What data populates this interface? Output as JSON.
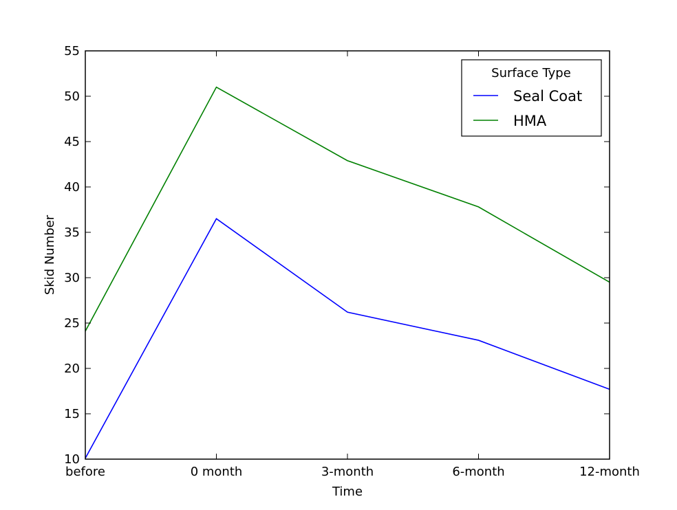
{
  "chart_data": {
    "type": "line",
    "categories": [
      "before",
      "0 month",
      "3-month",
      "6-month",
      "12-month"
    ],
    "series": [
      {
        "name": "Seal Coat",
        "color": "#0000ff",
        "values": [
          10.1,
          36.5,
          26.2,
          23.1,
          17.7
        ]
      },
      {
        "name": "HMA",
        "color": "#008000",
        "values": [
          24.1,
          51.0,
          42.9,
          37.8,
          29.5
        ]
      }
    ],
    "title": "",
    "xlabel": "Time",
    "ylabel": "Skid Number",
    "ylim": [
      10,
      55
    ],
    "yticks": [
      10,
      15,
      20,
      25,
      30,
      35,
      40,
      45,
      50,
      55
    ],
    "grid": false,
    "legend": {
      "title": "Surface Type",
      "position": "top-right"
    }
  }
}
